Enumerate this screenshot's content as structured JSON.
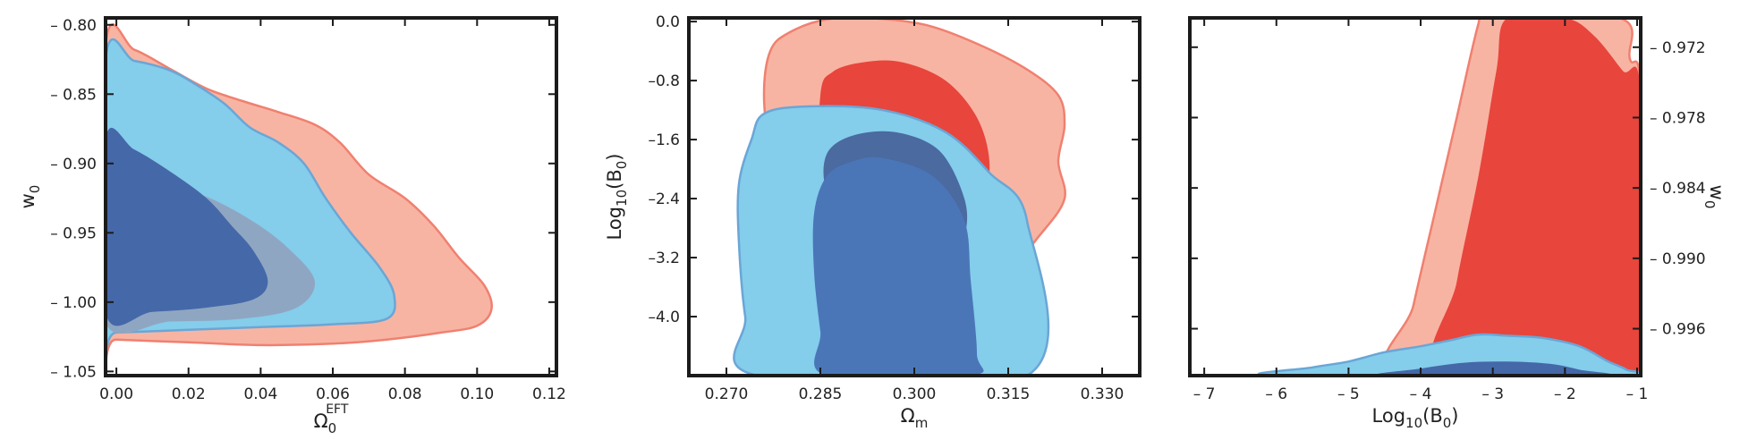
{
  "colors": {
    "red_outer": "#f8b4a3",
    "red_outer_edge": "#f08070",
    "red_inner": "#e8453c",
    "blue_outer": "#84cdeb",
    "blue_outer_edge": "#6aa6d6",
    "blue_inner": "#4568a8",
    "blue_inner_alt": "#4a76b8",
    "overlap_gray": "#8fa6c2",
    "overlap_inner": "#4a6aa0"
  },
  "chart_data": [
    {
      "type": "contour",
      "id": "panel1",
      "xlabel": "Ω",
      "xlabel_sub": "0",
      "xlabel_sup": "EFT",
      "ylabel": "w",
      "ylabel_sub": "0",
      "xlim": [
        -0.003,
        0.122
      ],
      "ylim": [
        -1.053,
        -0.795
      ],
      "xticks": [
        0.0,
        0.02,
        0.04,
        0.06,
        0.08,
        0.1,
        0.12
      ],
      "xtick_labels": [
        "0.00",
        "0.02",
        "0.04",
        "0.06",
        "0.08",
        "0.10",
        "0.12"
      ],
      "yticks": [
        -1.05,
        -1.0,
        -0.95,
        -0.9,
        -0.85,
        -0.8
      ],
      "ytick_labels": [
        "– 1.05",
        "– 1.00",
        "– 0.95",
        "– 0.90",
        "– 0.85",
        "– 0.80"
      ],
      "y_axis_side": "left",
      "regions": [
        {
          "name": "red-outer",
          "fill": "red_outer",
          "stroke": "red_outer_edge",
          "points": [
            [
              -0.003,
              -0.815
            ],
            [
              0.005,
              -0.818
            ],
            [
              0.015,
              -0.832
            ],
            [
              0.025,
              -0.846
            ],
            [
              0.035,
              -0.855
            ],
            [
              0.045,
              -0.863
            ],
            [
              0.055,
              -0.872
            ],
            [
              0.062,
              -0.885
            ],
            [
              0.07,
              -0.908
            ],
            [
              0.08,
              -0.925
            ],
            [
              0.088,
              -0.945
            ],
            [
              0.095,
              -0.968
            ],
            [
              0.102,
              -0.988
            ],
            [
              0.104,
              -1.005
            ],
            [
              0.1,
              -1.017
            ],
            [
              0.09,
              -1.022
            ],
            [
              0.075,
              -1.027
            ],
            [
              0.06,
              -1.03
            ],
            [
              0.04,
              -1.031
            ],
            [
              0.02,
              -1.029
            ],
            [
              0.0,
              -1.027
            ],
            [
              -0.003,
              -1.026
            ]
          ]
        },
        {
          "name": "blue-outer",
          "fill": "blue_outer",
          "stroke": "blue_outer_edge",
          "points": [
            [
              -0.003,
              -0.825
            ],
            [
              0.005,
              -0.826
            ],
            [
              0.015,
              -0.833
            ],
            [
              0.022,
              -0.843
            ],
            [
              0.03,
              -0.857
            ],
            [
              0.037,
              -0.874
            ],
            [
              0.045,
              -0.885
            ],
            [
              0.052,
              -0.9
            ],
            [
              0.058,
              -0.925
            ],
            [
              0.065,
              -0.95
            ],
            [
              0.073,
              -0.975
            ],
            [
              0.077,
              -0.995
            ],
            [
              0.075,
              -1.012
            ],
            [
              0.06,
              -1.016
            ],
            [
              0.04,
              -1.018
            ],
            [
              0.02,
              -1.02
            ],
            [
              0.0,
              -1.022
            ],
            [
              -0.003,
              -1.022
            ]
          ]
        },
        {
          "name": "overlap-gray",
          "fill": "overlap_gray",
          "stroke": "none",
          "points": [
            [
              -0.003,
              -0.908
            ],
            [
              0.01,
              -0.912
            ],
            [
              0.025,
              -0.924
            ],
            [
              0.038,
              -0.942
            ],
            [
              0.048,
              -0.962
            ],
            [
              0.055,
              -0.985
            ],
            [
              0.05,
              -1.004
            ],
            [
              0.035,
              -1.012
            ],
            [
              0.015,
              -1.014
            ],
            [
              -0.003,
              -1.015
            ]
          ]
        },
        {
          "name": "blue-inner",
          "fill": "blue_inner",
          "stroke": "none",
          "points": [
            [
              -0.003,
              -0.882
            ],
            [
              0.005,
              -0.89
            ],
            [
              0.015,
              -0.906
            ],
            [
              0.025,
              -0.925
            ],
            [
              0.032,
              -0.945
            ],
            [
              0.038,
              -0.963
            ],
            [
              0.042,
              -0.985
            ],
            [
              0.038,
              -0.998
            ],
            [
              0.025,
              -1.004
            ],
            [
              0.01,
              -1.007
            ],
            [
              -0.003,
              -1.008
            ]
          ]
        }
      ]
    },
    {
      "type": "contour",
      "id": "panel2",
      "xlabel": "Ω",
      "xlabel_sub": "m",
      "ylabel": "Log",
      "ylabel_sub": "10",
      "ylabel_rest": "(B",
      "ylabel_sub2": "0",
      "ylabel_end": ")",
      "xlim": [
        0.264,
        0.336
      ],
      "ylim": [
        -4.8,
        0.05
      ],
      "xticks": [
        0.27,
        0.285,
        0.3,
        0.315,
        0.33
      ],
      "xtick_labels": [
        "0.270",
        "0.285",
        "0.300",
        "0.315",
        "0.330"
      ],
      "yticks": [
        -4.0,
        -3.2,
        -2.4,
        -1.6,
        -0.8,
        0.0
      ],
      "ytick_labels": [
        "–4.0",
        "–3.2",
        "–2.4",
        "–1.6",
        "–0.8",
        "0.0"
      ],
      "y_axis_side": "left",
      "regions": [
        {
          "name": "red-outer",
          "fill": "red_outer",
          "stroke": "red_outer_edge",
          "points": [
            [
              0.277,
              -0.4
            ],
            [
              0.28,
              -0.15
            ],
            [
              0.286,
              0.03
            ],
            [
              0.294,
              0.04
            ],
            [
              0.302,
              -0.05
            ],
            [
              0.31,
              -0.3
            ],
            [
              0.318,
              -0.65
            ],
            [
              0.323,
              -1.0
            ],
            [
              0.324,
              -1.4
            ],
            [
              0.323,
              -1.9
            ],
            [
              0.324,
              -2.4
            ],
            [
              0.32,
              -2.9
            ],
            [
              0.314,
              -3.45
            ],
            [
              0.306,
              -3.65
            ],
            [
              0.298,
              -3.75
            ],
            [
              0.29,
              -3.6
            ],
            [
              0.282,
              -3.3
            ],
            [
              0.278,
              -2.9
            ],
            [
              0.277,
              -2.0
            ],
            [
              0.276,
              -1.0
            ]
          ]
        },
        {
          "name": "red-inner",
          "fill": "red_inner",
          "stroke": "none",
          "points": [
            [
              0.285,
              -1.0
            ],
            [
              0.287,
              -0.68
            ],
            [
              0.292,
              -0.55
            ],
            [
              0.298,
              -0.55
            ],
            [
              0.305,
              -0.8
            ],
            [
              0.31,
              -1.3
            ],
            [
              0.312,
              -1.9
            ],
            [
              0.311,
              -2.5
            ],
            [
              0.308,
              -3.0
            ],
            [
              0.302,
              -3.2
            ],
            [
              0.294,
              -3.1
            ],
            [
              0.288,
              -2.8
            ],
            [
              0.285,
              -2.3
            ]
          ]
        },
        {
          "name": "blue-outer",
          "fill": "blue_outer",
          "stroke": "blue_outer_edge",
          "points": [
            [
              0.275,
              -4.8
            ],
            [
              0.273,
              -4.0
            ],
            [
              0.272,
              -3.0
            ],
            [
              0.272,
              -2.2
            ],
            [
              0.274,
              -1.6
            ],
            [
              0.276,
              -1.25
            ],
            [
              0.283,
              -1.15
            ],
            [
              0.295,
              -1.2
            ],
            [
              0.305,
              -1.5
            ],
            [
              0.312,
              -2.05
            ],
            [
              0.318,
              -2.7
            ],
            [
              0.318,
              -4.8
            ]
          ]
        },
        {
          "name": "overlap-inner",
          "fill": "overlap_inner",
          "stroke": "none",
          "points": [
            [
              0.286,
              -1.8
            ],
            [
              0.29,
              -1.55
            ],
            [
              0.297,
              -1.5
            ],
            [
              0.304,
              -1.75
            ],
            [
              0.308,
              -2.4
            ],
            [
              0.308,
              -2.9
            ],
            [
              0.305,
              -3.2
            ],
            [
              0.297,
              -3.1
            ],
            [
              0.29,
              -2.8
            ],
            [
              0.286,
              -2.3
            ]
          ]
        },
        {
          "name": "blue-inner",
          "fill": "blue_inner_alt",
          "stroke": "none",
          "points": [
            [
              0.286,
              -4.8
            ],
            [
              0.285,
              -4.2
            ],
            [
              0.284,
              -3.4
            ],
            [
              0.284,
              -2.6
            ],
            [
              0.286,
              -2.1
            ],
            [
              0.29,
              -1.9
            ],
            [
              0.295,
              -1.85
            ],
            [
              0.303,
              -2.1
            ],
            [
              0.308,
              -2.7
            ],
            [
              0.309,
              -3.5
            ],
            [
              0.31,
              -4.5
            ],
            [
              0.309,
              -4.8
            ]
          ]
        }
      ]
    },
    {
      "type": "contour",
      "id": "panel3",
      "xlabel": "Log",
      "xlabel_sub": "10",
      "xlabel_rest": "(B",
      "xlabel_sub2": "0",
      "xlabel_end": ")",
      "ylabel": "w",
      "ylabel_sub": "0",
      "xlim": [
        -7.2,
        -0.95
      ],
      "ylim": [
        -1.0,
        -0.9695
      ],
      "xticks": [
        -7,
        -6,
        -5,
        -4,
        -3,
        -2,
        -1
      ],
      "xtick_labels": [
        "– 7",
        "– 6",
        "– 5",
        "– 4",
        "– 3",
        "– 2",
        "– 1"
      ],
      "yticks": [
        -0.996,
        -0.99,
        -0.984,
        -0.978,
        -0.972
      ],
      "ytick_labels": [
        "– 0.996",
        "– 0.990",
        "– 0.984",
        "– 0.978",
        "– 0.972"
      ],
      "y_axis_side": "right",
      "regions": [
        {
          "name": "red-outer",
          "fill": "red_outer",
          "stroke": "red_outer_edge",
          "points": [
            [
              -4.3,
              -1.0
            ],
            [
              -4.1,
              -0.994
            ],
            [
              -3.8,
              -0.986
            ],
            [
              -3.5,
              -0.978
            ],
            [
              -3.2,
              -0.97
            ],
            [
              -3.1,
              -0.9695
            ],
            [
              -1.25,
              -0.9695
            ],
            [
              -1.1,
              -0.973
            ],
            [
              -0.95,
              -0.976
            ],
            [
              -0.95,
              -1.0
            ]
          ]
        },
        {
          "name": "red-inner",
          "fill": "red_inner",
          "stroke": "none",
          "points": [
            [
              -3.7,
              -1.0
            ],
            [
              -3.5,
              -0.992
            ],
            [
              -3.2,
              -0.983
            ],
            [
              -2.95,
              -0.974
            ],
            [
              -2.8,
              -0.9695
            ],
            [
              -2.0,
              -0.9695
            ],
            [
              -1.6,
              -0.971
            ],
            [
              -1.2,
              -0.974
            ],
            [
              -0.95,
              -0.976
            ],
            [
              -0.95,
              -1.0
            ]
          ]
        },
        {
          "name": "blue-outer",
          "fill": "blue_outer",
          "stroke": "blue_outer_edge",
          "points": [
            [
              -6.0,
              -1.0
            ],
            [
              -5.5,
              -0.9993
            ],
            [
              -5.0,
              -0.9988
            ],
            [
              -4.5,
              -0.998
            ],
            [
              -4.0,
              -0.9975
            ],
            [
              -3.6,
              -0.997
            ],
            [
              -3.2,
              -0.9965
            ],
            [
              -2.8,
              -0.9966
            ],
            [
              -2.3,
              -0.9968
            ],
            [
              -1.8,
              -0.9975
            ],
            [
              -1.4,
              -0.9988
            ],
            [
              -1.15,
              -0.9995
            ],
            [
              -1.2,
              -1.0
            ]
          ]
        },
        {
          "name": "blue-inner",
          "fill": "blue_inner",
          "stroke": "none",
          "points": [
            [
              -4.5,
              -1.0
            ],
            [
              -4.0,
              -0.9994
            ],
            [
              -3.4,
              -0.9989
            ],
            [
              -2.8,
              -0.9988
            ],
            [
              -2.2,
              -0.999
            ],
            [
              -1.8,
              -0.9995
            ],
            [
              -1.5,
              -1.0
            ]
          ]
        }
      ]
    }
  ]
}
